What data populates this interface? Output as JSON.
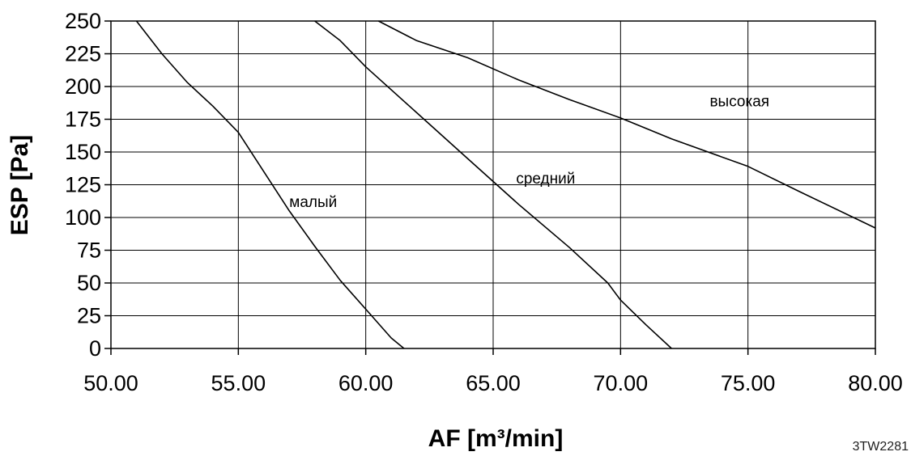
{
  "chart_data": {
    "type": "line",
    "xlabel": "AF [m³/min]",
    "ylabel": "ESP [Pa]",
    "xlim": [
      50,
      80
    ],
    "ylim": [
      0,
      250
    ],
    "x_ticks": [
      50,
      55,
      60,
      65,
      70,
      75,
      80
    ],
    "x_tick_labels": [
      "50.00",
      "55.00",
      "60.00",
      "65.00",
      "70.00",
      "75.00",
      "80.00"
    ],
    "y_ticks": [
      0,
      25,
      50,
      75,
      100,
      125,
      150,
      175,
      200,
      225,
      250
    ],
    "y_tick_labels": [
      "0",
      "25",
      "50",
      "75",
      "100",
      "125",
      "150",
      "175",
      "200",
      "225",
      "250"
    ],
    "grid": true,
    "series": [
      {
        "name": "малый",
        "points": [
          [
            51.0,
            250
          ],
          [
            52.0,
            225
          ],
          [
            53.0,
            203
          ],
          [
            54.0,
            185
          ],
          [
            55.0,
            165
          ],
          [
            56.0,
            135
          ],
          [
            57.0,
            105
          ],
          [
            58.0,
            78
          ],
          [
            59.0,
            52
          ],
          [
            60.0,
            30
          ],
          [
            61.0,
            8
          ],
          [
            61.5,
            0
          ]
        ]
      },
      {
        "name": "средний",
        "points": [
          [
            58.0,
            250
          ],
          [
            59.0,
            235
          ],
          [
            60.0,
            215
          ],
          [
            62.0,
            180
          ],
          [
            64.0,
            145
          ],
          [
            66.0,
            110
          ],
          [
            68.0,
            77
          ],
          [
            69.5,
            50
          ],
          [
            70.0,
            37
          ],
          [
            71.0,
            18
          ],
          [
            72.0,
            0
          ]
        ]
      },
      {
        "name": "высокая",
        "points": [
          [
            60.5,
            250
          ],
          [
            62.0,
            235
          ],
          [
            64.0,
            222
          ],
          [
            66.0,
            205
          ],
          [
            68.0,
            190
          ],
          [
            70.0,
            176
          ],
          [
            72.0,
            160
          ],
          [
            75.0,
            139
          ],
          [
            77.0,
            120
          ],
          [
            80.0,
            92
          ]
        ]
      }
    ],
    "annotations": [
      {
        "text": "малый",
        "x": 57.0,
        "y": 108
      },
      {
        "text": "средний",
        "x": 65.9,
        "y": 126
      },
      {
        "text": "высокая",
        "x": 73.5,
        "y": 185
      }
    ]
  },
  "figure_code": "3TW2281"
}
